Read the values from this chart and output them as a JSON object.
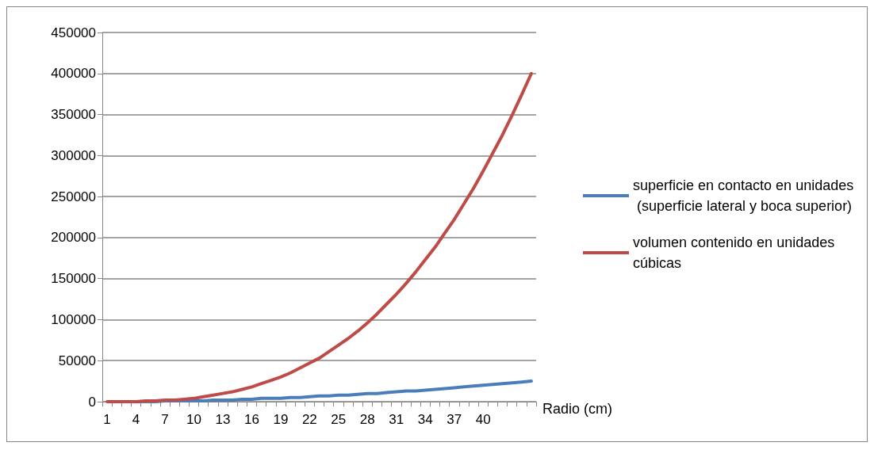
{
  "chart_data": {
    "type": "line",
    "xlabel": "Radio (cm)",
    "categories": [
      "1",
      null,
      null,
      "4",
      null,
      null,
      "7",
      null,
      null,
      "10",
      null,
      null,
      "13",
      null,
      null,
      "16",
      null,
      null,
      "19",
      null,
      null,
      "22",
      null,
      null,
      "25",
      null,
      null,
      "28",
      null,
      null,
      "31",
      null,
      null,
      "34",
      null,
      null,
      "37",
      null,
      null,
      "40",
      null,
      null,
      null,
      null,
      null
    ],
    "series": [
      {
        "name": "superficie en contacto en unidades (superficie lateral y boca superior)",
        "color": "#4a7ebb",
        "values": [
          null,
          null,
          null,
          0,
          0,
          0,
          1000,
          1000,
          1000,
          1000,
          1000,
          2000,
          2000,
          2000,
          3000,
          3000,
          4000,
          4000,
          4000,
          5000,
          5000,
          6000,
          7000,
          7000,
          8000,
          8000,
          9000,
          10000,
          10000,
          11000,
          12000,
          13000,
          13000,
          14000,
          15000,
          16000,
          17000,
          18000,
          19000,
          20000,
          21000,
          22000,
          23000,
          24000,
          25000
        ]
      },
      {
        "name": "volumen contenido en unidades cúbicas",
        "color": "#be4b48",
        "values": [
          0,
          0,
          0,
          0,
          1000,
          1000,
          2000,
          2000,
          3000,
          4000,
          6000,
          8000,
          10000,
          12000,
          15000,
          18000,
          22000,
          26000,
          30000,
          35000,
          41000,
          47000,
          53000,
          61000,
          69000,
          77000,
          86000,
          96000,
          107000,
          119000,
          131000,
          144000,
          158000,
          173000,
          188000,
          205000,
          222000,
          241000,
          260000,
          281000,
          303000,
          325000,
          349000,
          374000,
          400000
        ]
      }
    ],
    "ylim": [
      0,
      450000
    ],
    "yticks": [
      0,
      50000,
      100000,
      150000,
      200000,
      250000,
      300000,
      350000,
      400000,
      450000
    ],
    "grid": "y",
    "legend": "right",
    "marker": "none",
    "line_style": "solid"
  }
}
